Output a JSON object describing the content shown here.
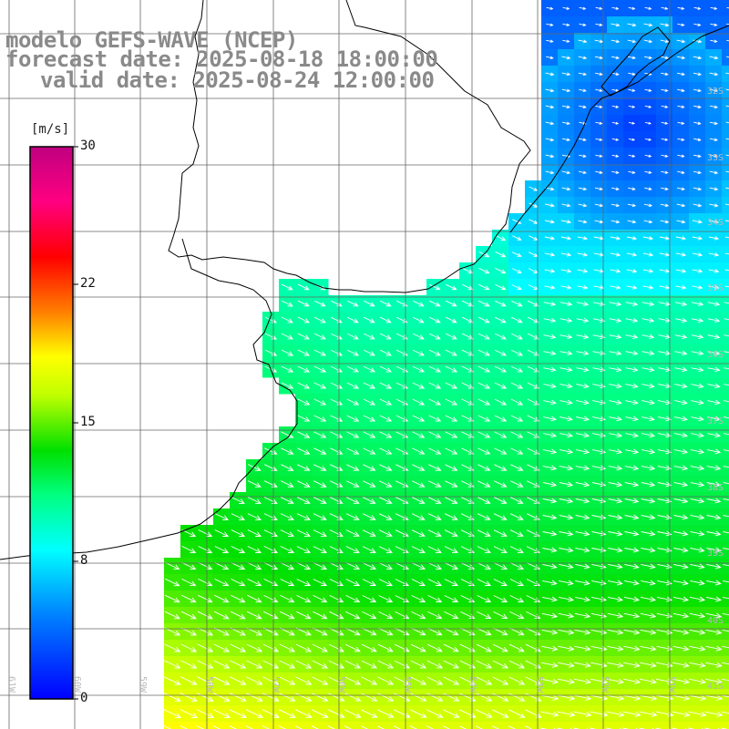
{
  "title": {
    "line1": "modelo GEFS-WAVE (NCEP)",
    "line2": "forecast date: 2025-08-18 18:00:00",
    "line3": "valid date: 2025-08-24 12:00:00"
  },
  "colorbar": {
    "unit": "[m/s]",
    "ticks": [
      "30",
      "22",
      "15",
      "8",
      "0"
    ],
    "values": [
      30,
      22,
      15,
      8,
      0
    ],
    "colors": [
      "#0000ff",
      "#00c0ff",
      "#00ffff",
      "#00ff40",
      "#00e000",
      "#c0ff00",
      "#ffff00",
      "#ff8000",
      "#ff0000",
      "#ff00ff",
      "#c00080"
    ]
  },
  "lat_labels": [
    "32S",
    "33S",
    "34S",
    "35S",
    "36S",
    "37S",
    "38S",
    "39S",
    "40S",
    "41S"
  ],
  "lon_labels": [
    "61W",
    "60W",
    "59W",
    "58W",
    "57W",
    "56W",
    "55W",
    "54W",
    "53W",
    "52W",
    "51W"
  ],
  "map": {
    "variable": "wind speed",
    "wind_direction": "toward southeast",
    "land_color": "#ffffff",
    "grid_color": "#666666",
    "coast_color": "#000000",
    "arrow_color": "#ffffff"
  }
}
